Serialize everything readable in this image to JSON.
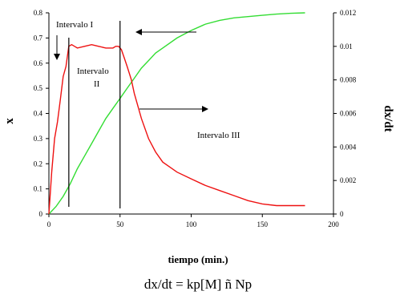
{
  "chart_data": {
    "type": "line",
    "xlabel": "tiempo (min.)",
    "ylabel_left": "x",
    "ylabel_right": "dx/dt",
    "xlim": [
      0,
      200
    ],
    "ylim_left": [
      0,
      0.8
    ],
    "ylim_right": [
      0,
      0.012
    ],
    "x_ticks": [
      "0",
      "50",
      "100",
      "150",
      "200"
    ],
    "y_left_ticks": [
      "0",
      "0.1",
      "0.2",
      "0.3",
      "0.4",
      "0.5",
      "0.6",
      "0.7",
      "0.8"
    ],
    "y_right_ticks": [
      "0",
      "0.002",
      "0.004",
      "0.006",
      "0.008",
      "0.01",
      "0.012"
    ],
    "grid": false,
    "series": [
      {
        "axis": "left",
        "color": "#33dd33",
        "x": [
          0,
          5,
          10,
          15,
          20,
          25,
          30,
          35,
          40,
          45,
          50,
          55,
          60,
          65,
          70,
          75,
          80,
          90,
          100,
          110,
          120,
          130,
          140,
          150,
          160,
          170,
          180
        ],
        "y": [
          0,
          0.03,
          0.07,
          0.12,
          0.18,
          0.23,
          0.28,
          0.33,
          0.38,
          0.42,
          0.46,
          0.5,
          0.54,
          0.58,
          0.61,
          0.64,
          0.66,
          0.7,
          0.73,
          0.755,
          0.77,
          0.78,
          0.785,
          0.79,
          0.795,
          0.798,
          0.8
        ]
      },
      {
        "axis": "right",
        "color": "#ee1111",
        "x": [
          0,
          2,
          4,
          6,
          8,
          10,
          12,
          14,
          16,
          18,
          20,
          25,
          30,
          35,
          40,
          45,
          47,
          49,
          51,
          53,
          55,
          58,
          60,
          65,
          70,
          75,
          80,
          85,
          90,
          100,
          110,
          120,
          130,
          140,
          150,
          160,
          170,
          180
        ],
        "y": [
          0,
          0.0025,
          0.0045,
          0.0055,
          0.0068,
          0.0082,
          0.0088,
          0.01,
          0.0101,
          0.01,
          0.0099,
          0.01,
          0.0101,
          0.01,
          0.0099,
          0.0099,
          0.01,
          0.01,
          0.0098,
          0.0093,
          0.0088,
          0.008,
          0.0072,
          0.0057,
          0.0045,
          0.0037,
          0.0031,
          0.0028,
          0.0025,
          0.0021,
          0.0017,
          0.0014,
          0.0011,
          0.0008,
          0.0006,
          0.0005,
          0.0005,
          0.0005
        ]
      }
    ],
    "interval_lines_x": [
      14,
      50
    ],
    "annotations": {
      "interval_1": "Intervalo I",
      "interval_2_line1": "Intervalo",
      "interval_2_line2": "II",
      "interval_3": "Intervalo III"
    }
  },
  "equation": "dx/dt = kp[M] ñ Np"
}
